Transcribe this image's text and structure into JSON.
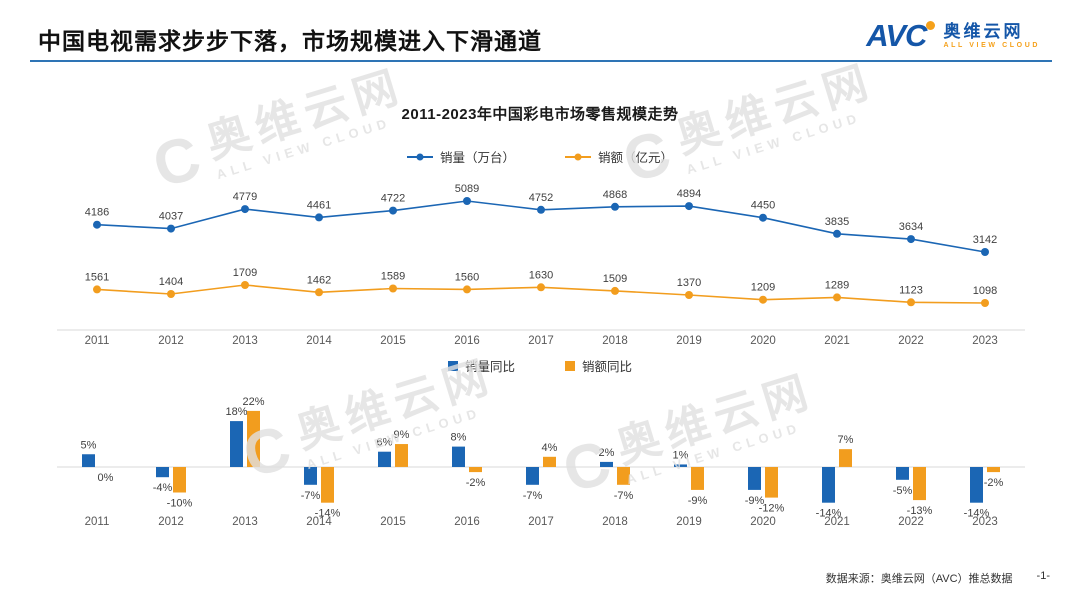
{
  "header": {
    "title": "中国电视需求步步下落，市场规模进入下滑通道",
    "logo": {
      "abbr": "AVC",
      "name_cn": "奥维云网",
      "name_en": "ALL VIEW CLOUD"
    }
  },
  "watermark": {
    "symbol": "C",
    "name_cn": "奥维云网",
    "name_en": "ALL VIEW CLOUD"
  },
  "colors": {
    "accent_blue": "#1B66B4",
    "accent_orange": "#F29D1E",
    "divider_blue": "#2E74B5",
    "logo_blue": "#1456A8",
    "logo_orange": "#F5A11B"
  },
  "chart_data": [
    {
      "type": "line",
      "title": "2011-2023年中国彩电市场零售规模走势",
      "categories": [
        "2011",
        "2012",
        "2013",
        "2014",
        "2015",
        "2016",
        "2017",
        "2018",
        "2019",
        "2020",
        "2021",
        "2022",
        "2023"
      ],
      "series": [
        {
          "name": "销量（万台）",
          "color": "#1B66B4",
          "values": [
            4186,
            4037,
            4779,
            4461,
            4722,
            5089,
            4752,
            4868,
            4894,
            4450,
            3835,
            3634,
            3142
          ]
        },
        {
          "name": "销额（亿元）",
          "color": "#F29D1E",
          "values": [
            1561,
            1404,
            1709,
            1462,
            1589,
            1560,
            1630,
            1509,
            1370,
            1209,
            1289,
            1123,
            1098
          ]
        }
      ],
      "legend_position": "top",
      "grid": false,
      "data_labels": true
    },
    {
      "type": "bar",
      "title": "",
      "categories": [
        "2011",
        "2012",
        "2013",
        "2014",
        "2015",
        "2016",
        "2017",
        "2018",
        "2019",
        "2020",
        "2021",
        "2022",
        "2023"
      ],
      "value_format": "percent",
      "series": [
        {
          "name": "销量同比",
          "color": "#1B66B4",
          "values": [
            5,
            -4,
            18,
            -7,
            6,
            8,
            -7,
            2,
            1,
            -9,
            -14,
            -5,
            -14
          ]
        },
        {
          "name": "销额同比",
          "color": "#F29D1E",
          "values": [
            0,
            -10,
            22,
            -14,
            9,
            -2,
            4,
            -7,
            -9,
            -12,
            7,
            -13,
            -2
          ]
        }
      ],
      "legend_position": "top",
      "grid": false,
      "data_labels": true
    }
  ],
  "footer": {
    "source": "数据来源：奥维云网（AVC）推总数据",
    "page": "-1-"
  }
}
